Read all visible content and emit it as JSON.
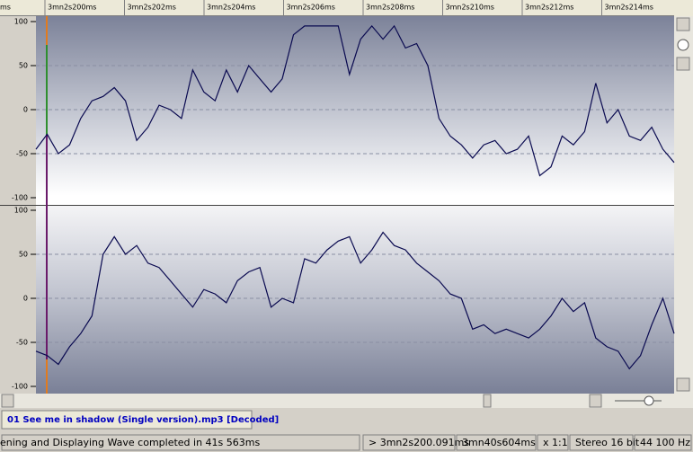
{
  "ruler": {
    "start_label": "ms",
    "labels": [
      "3mn2s200ms",
      "3mn2s202ms",
      "3mn2s204ms",
      "3mn2s206ms",
      "3mn2s208ms",
      "3mn2s210ms",
      "3mn2s212ms",
      "3mn2s214ms"
    ]
  },
  "channels": [
    {
      "ylim": [
        -100,
        100
      ],
      "yticks": [
        100,
        50,
        0,
        -50,
        -100
      ],
      "grid": [
        50,
        0,
        -50
      ],
      "samples": [
        -45,
        -28,
        -50,
        -40,
        -10,
        10,
        15,
        25,
        10,
        -35,
        -20,
        5,
        0,
        -10,
        45,
        20,
        10,
        45,
        20,
        50,
        35,
        20,
        35,
        85,
        95,
        95,
        95,
        95,
        40,
        80,
        95,
        80,
        95,
        70,
        75,
        50,
        -10,
        -30,
        -40,
        -55,
        -40,
        -35,
        -50,
        -45,
        -30,
        -75,
        -65,
        -30,
        -40,
        -25,
        30,
        -15,
        0,
        -30,
        -35,
        -20,
        -45,
        -60
      ]
    },
    {
      "ylim": [
        -100,
        100
      ],
      "yticks": [
        100,
        50,
        0,
        -50,
        -100
      ],
      "grid": [
        50,
        0,
        -50
      ],
      "samples": [
        -60,
        -65,
        -75,
        -55,
        -40,
        -20,
        50,
        70,
        50,
        60,
        40,
        35,
        20,
        5,
        -10,
        10,
        5,
        -5,
        20,
        30,
        35,
        -10,
        0,
        -5,
        45,
        40,
        55,
        65,
        70,
        40,
        55,
        75,
        60,
        55,
        40,
        30,
        20,
        5,
        0,
        -35,
        -30,
        -40,
        -35,
        -40,
        -45,
        -35,
        -20,
        0,
        -15,
        -5,
        -45,
        -55,
        -60,
        -80,
        -65,
        -30,
        0,
        -40
      ]
    }
  ],
  "tab": {
    "label": "01 See me in shadow (Single version).mp3 [Decoded]"
  },
  "status": {
    "items": [
      "ening and Displaying Wave completed in 41s 563ms",
      "> 3mn2s200.091ms",
      "3mn40s604ms",
      "x 1:1",
      "Stereo 16 bit",
      "44 100 Hz"
    ]
  }
}
